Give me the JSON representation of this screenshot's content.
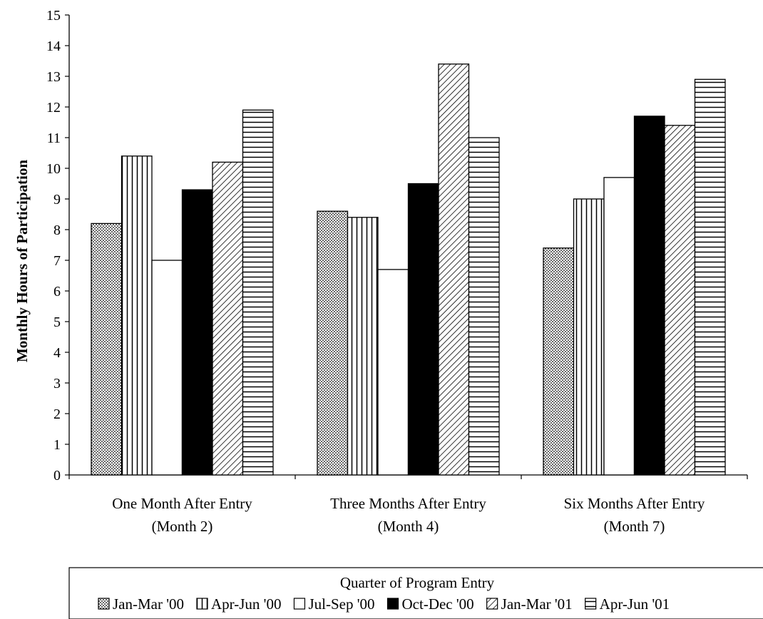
{
  "chart_data": {
    "type": "bar",
    "title": "",
    "xlabel": "",
    "ylabel": "Monthly Hours of Participation",
    "ylim": [
      0,
      15
    ],
    "yticks": [
      "0",
      "1",
      "2",
      "3",
      "4",
      "5",
      "6",
      "7",
      "8",
      "9",
      "10",
      "11",
      "12",
      "13",
      "14",
      "15"
    ],
    "categories": [
      [
        "One Month After Entry",
        "(Month 2)"
      ],
      [
        "Three Months After Entry",
        "(Month 4)"
      ],
      [
        "Six Months After Entry",
        "(Month 7)"
      ]
    ],
    "series": [
      {
        "name": "Jan-Mar '00",
        "pattern": "dots",
        "values": [
          8.2,
          8.6,
          7.4
        ]
      },
      {
        "name": "Apr-Jun '00",
        "pattern": "vertical",
        "values": [
          10.4,
          8.4,
          9.0
        ]
      },
      {
        "name": "Jul-Sep '00",
        "pattern": "blank",
        "values": [
          7.0,
          6.7,
          9.7
        ]
      },
      {
        "name": "Oct-Dec '00",
        "pattern": "solid",
        "values": [
          9.3,
          9.5,
          11.7
        ]
      },
      {
        "name": "Jan-Mar '01",
        "pattern": "diagonal",
        "values": [
          10.2,
          13.4,
          11.4
        ]
      },
      {
        "name": "Apr-Jun '01",
        "pattern": "horizontal",
        "values": [
          11.9,
          11.0,
          12.9
        ]
      }
    ],
    "grid": false,
    "legend": {
      "title": "Quarter of Program Entry",
      "position": "bottom"
    }
  }
}
